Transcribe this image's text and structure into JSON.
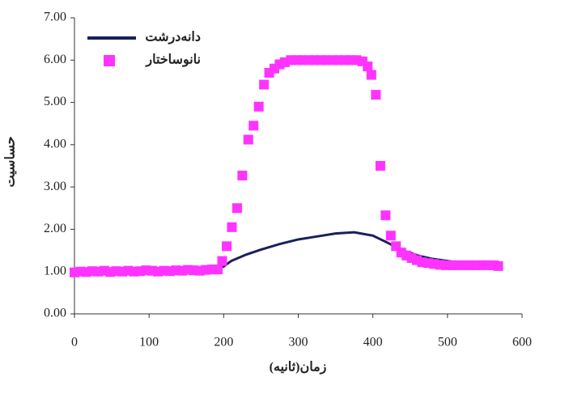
{
  "chart_data": {
    "type": "line",
    "x_label": "زمان(ثانیه)",
    "y_label": "حساسیت",
    "xlim": [
      0,
      600
    ],
    "xticks": [
      0,
      100,
      200,
      300,
      400,
      500,
      600
    ],
    "ylim": [
      0,
      7
    ],
    "yticks": [
      {
        "value": 0,
        "label": "0.00"
      },
      {
        "value": 1,
        "label": "1.00"
      },
      {
        "value": 2,
        "label": "2.00"
      },
      {
        "value": 3,
        "label": "3.00"
      },
      {
        "value": 4,
        "label": "4.00"
      },
      {
        "value": 5,
        "label": "5.00"
      },
      {
        "value": 6,
        "label": "6.00"
      },
      {
        "value": 7,
        "label": "7.00"
      }
    ],
    "legend": "upper left",
    "series": [
      {
        "name": "دانه‌درشت",
        "type": "line",
        "color": "#1a1f5e",
        "x": [
          0,
          50,
          100,
          150,
          190,
          200,
          210,
          230,
          250,
          275,
          300,
          325,
          350,
          375,
          400,
          420,
          440,
          460,
          480,
          500,
          520,
          540,
          560,
          570
        ],
        "values": [
          1.0,
          1.0,
          1.02,
          1.02,
          1.05,
          1.12,
          1.25,
          1.4,
          1.52,
          1.65,
          1.76,
          1.83,
          1.9,
          1.93,
          1.85,
          1.68,
          1.5,
          1.38,
          1.3,
          1.25,
          1.2,
          1.18,
          1.17,
          1.17
        ]
      },
      {
        "name": "نانوساختار",
        "type": "scatter",
        "color": "#ff33ff",
        "x": [
          0,
          8,
          16,
          24,
          32,
          40,
          48,
          56,
          64,
          72,
          80,
          88,
          96,
          104,
          112,
          120,
          128,
          136,
          144,
          152,
          160,
          168,
          176,
          184,
          192,
          198,
          204,
          211,
          218,
          225,
          233,
          240,
          247,
          254,
          261,
          268,
          275,
          282,
          290,
          298,
          306,
          314,
          322,
          330,
          338,
          346,
          354,
          362,
          370,
          378,
          386,
          393,
          398,
          404,
          410,
          417,
          424,
          431,
          438,
          445,
          452,
          459,
          466,
          474,
          482,
          490,
          498,
          506,
          514,
          522,
          530,
          538,
          546,
          554,
          562,
          568
        ],
        "values": [
          0.98,
          1.0,
          0.99,
          1.01,
          1.0,
          1.02,
          0.99,
          1.01,
          1.0,
          1.02,
          1.0,
          1.01,
          1.03,
          1.02,
          1.0,
          1.02,
          1.01,
          1.03,
          1.02,
          1.04,
          1.03,
          1.02,
          1.04,
          1.05,
          1.05,
          1.25,
          1.6,
          2.05,
          2.5,
          3.27,
          4.12,
          4.45,
          4.9,
          5.42,
          5.7,
          5.8,
          5.9,
          5.95,
          6.0,
          6.0,
          6.0,
          6.0,
          6.0,
          6.0,
          6.0,
          6.0,
          6.0,
          6.0,
          6.0,
          6.0,
          5.97,
          5.85,
          5.65,
          5.18,
          3.5,
          2.33,
          1.85,
          1.6,
          1.45,
          1.38,
          1.32,
          1.27,
          1.22,
          1.2,
          1.18,
          1.16,
          1.15,
          1.15,
          1.15,
          1.15,
          1.15,
          1.15,
          1.15,
          1.15,
          1.15,
          1.13
        ]
      }
    ]
  }
}
